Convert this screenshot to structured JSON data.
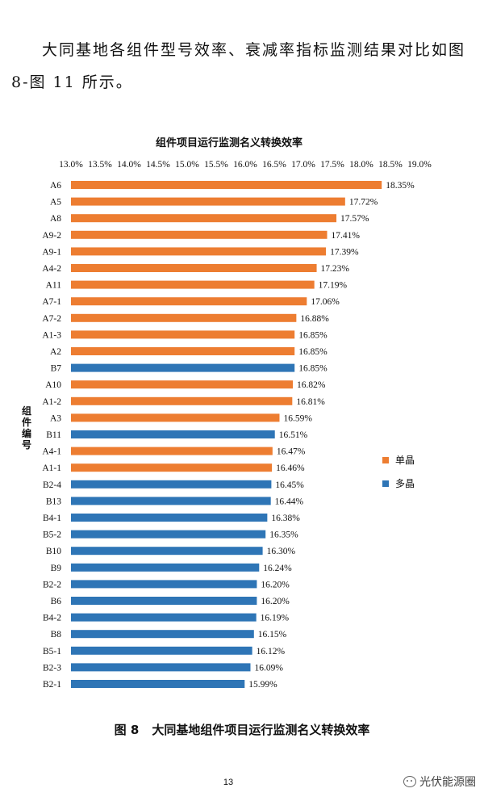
{
  "document": {
    "intro_text": "大同基地各组件型号效率、衰减率指标监测结果对比如图 8-图 11 所示。",
    "caption_number": "图 8",
    "caption_text": "大同基地组件项目运行监测名义转换效率",
    "page_number": "13",
    "watermark_text": "光伏能源圈",
    "watermark_icon": "wechat-icon"
  },
  "chart_data": {
    "type": "bar",
    "orientation": "horizontal",
    "title": "组件项目运行监测名义转换效率",
    "ylabel": "组件编号",
    "xlim": [
      13.0,
      19.0
    ],
    "x_axis_position": "top",
    "grid": false,
    "x_ticks": [
      "13.0%",
      "13.5%",
      "14.0%",
      "14.5%",
      "15.0%",
      "15.5%",
      "16.0%",
      "16.5%",
      "17.0%",
      "17.5%",
      "18.0%",
      "18.5%",
      "19.0%"
    ],
    "legend_position": "right",
    "series_colors": {
      "单晶": "#ED7D31",
      "多晶": "#2E75B6"
    },
    "legend": [
      {
        "name": "单晶",
        "color": "#ED7D31"
      },
      {
        "name": "多晶",
        "color": "#2E75B6"
      }
    ],
    "bars": [
      {
        "category": "A6",
        "value": 18.35,
        "label": "18.35%",
        "series": "单晶"
      },
      {
        "category": "A5",
        "value": 17.72,
        "label": "17.72%",
        "series": "单晶"
      },
      {
        "category": "A8",
        "value": 17.57,
        "label": "17.57%",
        "series": "单晶"
      },
      {
        "category": "A9-2",
        "value": 17.41,
        "label": "17.41%",
        "series": "单晶"
      },
      {
        "category": "A9-1",
        "value": 17.39,
        "label": "17.39%",
        "series": "单晶"
      },
      {
        "category": "A4-2",
        "value": 17.23,
        "label": "17.23%",
        "series": "单晶"
      },
      {
        "category": "A11",
        "value": 17.19,
        "label": "17.19%",
        "series": "单晶"
      },
      {
        "category": "A7-1",
        "value": 17.06,
        "label": "17.06%",
        "series": "单晶"
      },
      {
        "category": "A7-2",
        "value": 16.88,
        "label": "16.88%",
        "series": "单晶"
      },
      {
        "category": "A1-3",
        "value": 16.85,
        "label": "16.85%",
        "series": "单晶"
      },
      {
        "category": "A2",
        "value": 16.85,
        "label": "16.85%",
        "series": "单晶"
      },
      {
        "category": "B7",
        "value": 16.85,
        "label": "16.85%",
        "series": "多晶"
      },
      {
        "category": "A10",
        "value": 16.82,
        "label": "16.82%",
        "series": "单晶"
      },
      {
        "category": "A1-2",
        "value": 16.81,
        "label": "16.81%",
        "series": "单晶"
      },
      {
        "category": "A3",
        "value": 16.59,
        "label": "16.59%",
        "series": "单晶"
      },
      {
        "category": "B11",
        "value": 16.51,
        "label": "16.51%",
        "series": "多晶"
      },
      {
        "category": "A4-1",
        "value": 16.47,
        "label": "16.47%",
        "series": "单晶"
      },
      {
        "category": "A1-1",
        "value": 16.46,
        "label": "16.46%",
        "series": "单晶"
      },
      {
        "category": "B2-4",
        "value": 16.45,
        "label": "16.45%",
        "series": "多晶"
      },
      {
        "category": "B13",
        "value": 16.44,
        "label": "16.44%",
        "series": "多晶"
      },
      {
        "category": "B4-1",
        "value": 16.38,
        "label": "16.38%",
        "series": "多晶"
      },
      {
        "category": "B5-2",
        "value": 16.35,
        "label": "16.35%",
        "series": "多晶"
      },
      {
        "category": "B10",
        "value": 16.3,
        "label": "16.30%",
        "series": "多晶"
      },
      {
        "category": "B9",
        "value": 16.24,
        "label": "16.24%",
        "series": "多晶"
      },
      {
        "category": "B2-2",
        "value": 16.2,
        "label": "16.20%",
        "series": "多晶"
      },
      {
        "category": "B6",
        "value": 16.2,
        "label": "16.20%",
        "series": "多晶"
      },
      {
        "category": "B4-2",
        "value": 16.19,
        "label": "16.19%",
        "series": "多晶"
      },
      {
        "category": "B8",
        "value": 16.15,
        "label": "16.15%",
        "series": "多晶"
      },
      {
        "category": "B5-1",
        "value": 16.12,
        "label": "16.12%",
        "series": "多晶"
      },
      {
        "category": "B2-3",
        "value": 16.09,
        "label": "16.09%",
        "series": "多晶"
      },
      {
        "category": "B2-1",
        "value": 15.99,
        "label": "15.99%",
        "series": "多晶"
      }
    ]
  }
}
